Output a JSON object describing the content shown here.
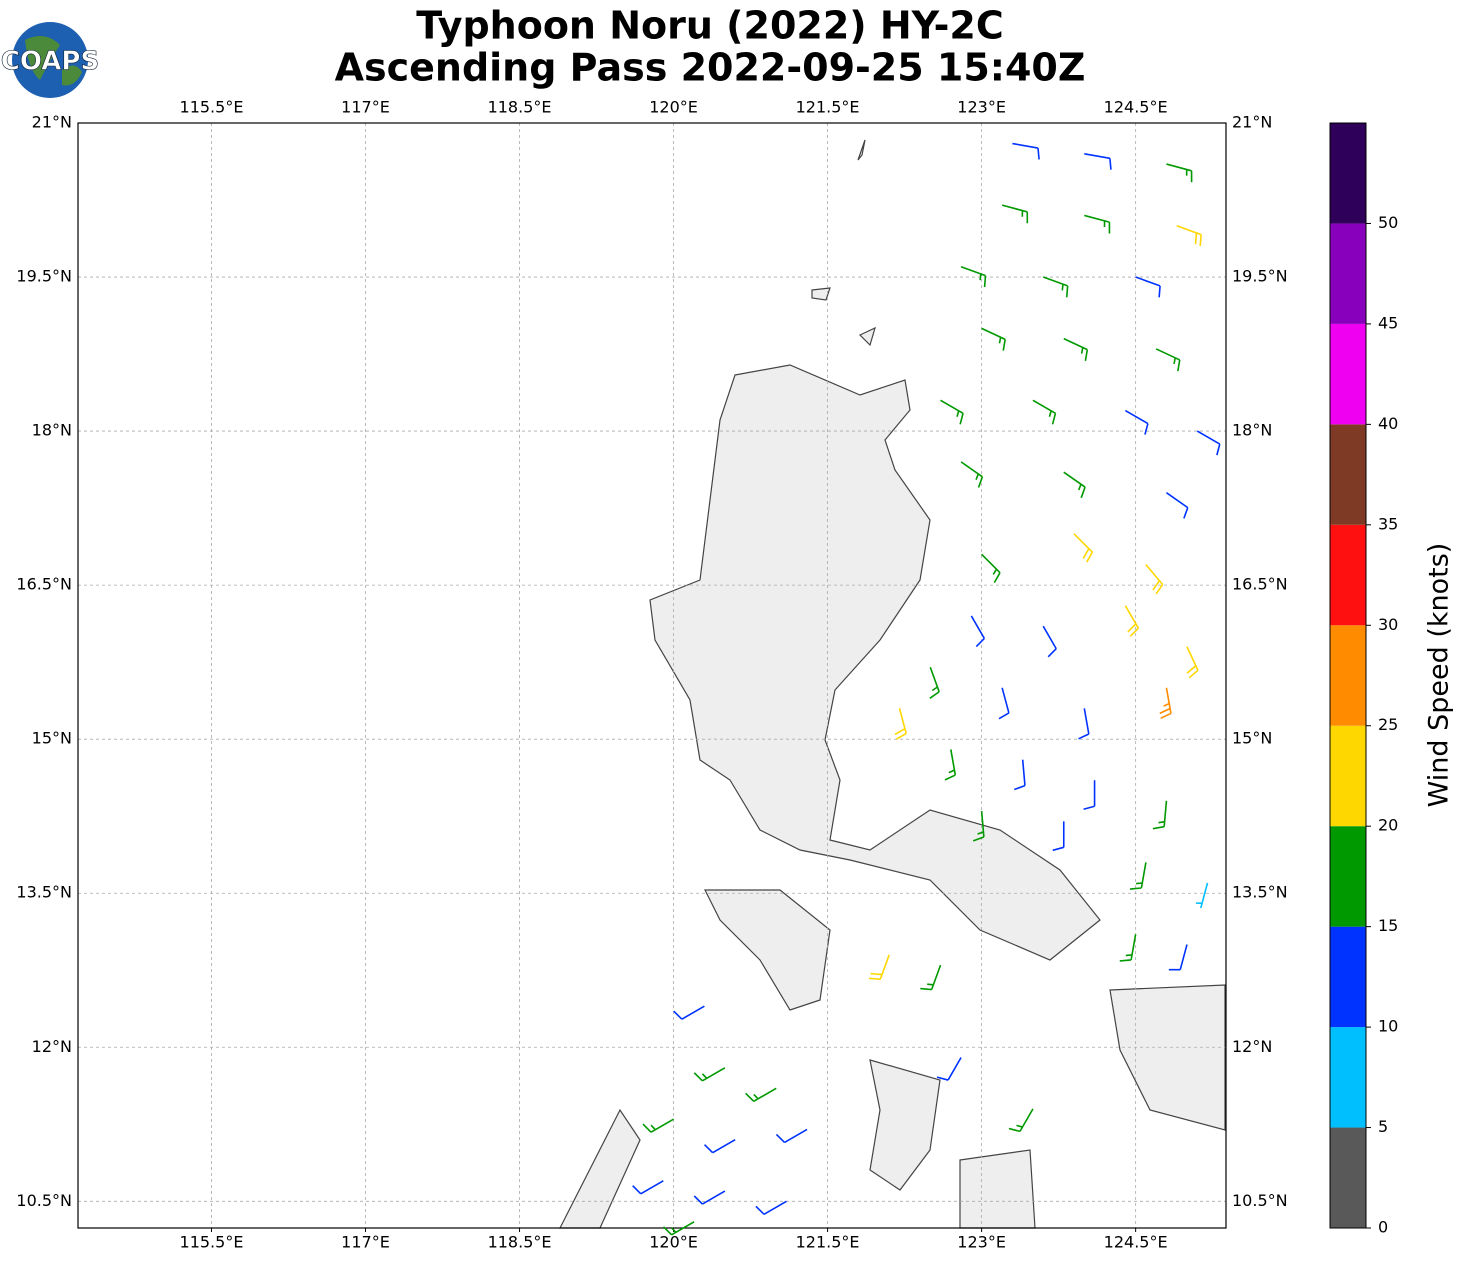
{
  "logo": "COAPS",
  "chart_data": {
    "type": "barb",
    "title": "Typhoon Noru (2022) HY-2C",
    "subtitle": "Ascending Pass 2022-09-25 15:40Z",
    "xlim": [
      114.2,
      125.38
    ],
    "ylim": [
      10.24,
      21
    ],
    "xticks": [
      {
        "value": 115.5,
        "label": "115.5°E"
      },
      {
        "value": 117,
        "label": "117°E"
      },
      {
        "value": 118.5,
        "label": "118.5°E"
      },
      {
        "value": 120,
        "label": "120°E"
      },
      {
        "value": 121.5,
        "label": "121.5°E"
      },
      {
        "value": 123,
        "label": "123°E"
      },
      {
        "value": 124.5,
        "label": "124.5°E"
      }
    ],
    "yticks": [
      {
        "value": 21,
        "label": "21°N"
      },
      {
        "value": 19.5,
        "label": "19.5°N"
      },
      {
        "value": 18,
        "label": "18°N"
      },
      {
        "value": 16.5,
        "label": "16.5°N"
      },
      {
        "value": 15,
        "label": "15°N"
      },
      {
        "value": 13.5,
        "label": "13.5°N"
      },
      {
        "value": 12,
        "label": "12°N"
      },
      {
        "value": 10.5,
        "label": "10.5°N"
      }
    ],
    "grid": true,
    "colorbar": {
      "label": "Wind Speed (knots)",
      "lim": [
        0,
        55
      ],
      "bounds": [
        0,
        5,
        10,
        15,
        20,
        25,
        30,
        35,
        40,
        45,
        50,
        55
      ],
      "colors": [
        "#595959",
        "#00bfff",
        "#0033ff",
        "#009900",
        "#ffd700",
        "#ff8c00",
        "#ff1010",
        "#7f3a25",
        "#f000f0",
        "#8800bb",
        "#2e0059"
      ],
      "ticks": [
        0,
        5,
        10,
        15,
        20,
        25,
        30,
        35,
        40,
        45,
        50
      ]
    },
    "barbs": {
      "lon": [
        123.3,
        124.0,
        124.8,
        123.2,
        124.0,
        124.9,
        122.8,
        123.6,
        124.5,
        123.0,
        123.8,
        124.7,
        122.6,
        123.5,
        124.4,
        125.1,
        122.8,
        123.8,
        124.8,
        123.0,
        123.9,
        124.6,
        122.9,
        123.6,
        124.4,
        125.0,
        122.5,
        123.2,
        124.0,
        124.8,
        122.2,
        122.7,
        123.4,
        124.1,
        124.8,
        123.0,
        123.8,
        124.6,
        125.2,
        124.5,
        125.0,
        122.1,
        122.6,
        122.8,
        123.5,
        120.3,
        120.5,
        121.0,
        120.0,
        120.6,
        121.3,
        119.9,
        120.5,
        121.1,
        120.2
      ],
      "lat": [
        20.8,
        20.7,
        20.6,
        20.2,
        20.1,
        20.0,
        19.6,
        19.5,
        19.5,
        19.0,
        18.9,
        18.8,
        18.3,
        18.3,
        18.2,
        18.0,
        17.7,
        17.6,
        17.4,
        16.8,
        17.0,
        16.7,
        16.2,
        16.1,
        16.3,
        15.9,
        15.7,
        15.5,
        15.3,
        15.5,
        15.3,
        14.9,
        14.8,
        14.6,
        14.4,
        14.3,
        14.2,
        13.8,
        13.6,
        13.1,
        13.0,
        12.9,
        12.8,
        11.9,
        11.4,
        12.4,
        11.8,
        11.6,
        11.3,
        11.1,
        11.2,
        10.7,
        10.6,
        10.5,
        10.3
      ],
      "speed": [
        12,
        13,
        16,
        17,
        17,
        21,
        17,
        18,
        12,
        17,
        18,
        17,
        18,
        18,
        12,
        12,
        17,
        17,
        13,
        16,
        22,
        22,
        12,
        13,
        21,
        21,
        17,
        12,
        11,
        26,
        22,
        17,
        12,
        13,
        18,
        17,
        12,
        17,
        8,
        17,
        13,
        22,
        17,
        12,
        17,
        12,
        17,
        17,
        17,
        12,
        12,
        12,
        12,
        13,
        17
      ],
      "direction": [
        100,
        100,
        105,
        105,
        105,
        110,
        110,
        110,
        110,
        115,
        115,
        115,
        120,
        120,
        120,
        120,
        125,
        125,
        125,
        135,
        135,
        140,
        150,
        150,
        150,
        155,
        160,
        165,
        170,
        170,
        165,
        170,
        175,
        180,
        185,
        175,
        180,
        190,
        195,
        190,
        195,
        200,
        200,
        210,
        210,
        240,
        240,
        240,
        240,
        240,
        240,
        240,
        240,
        240,
        240
      ]
    }
  }
}
